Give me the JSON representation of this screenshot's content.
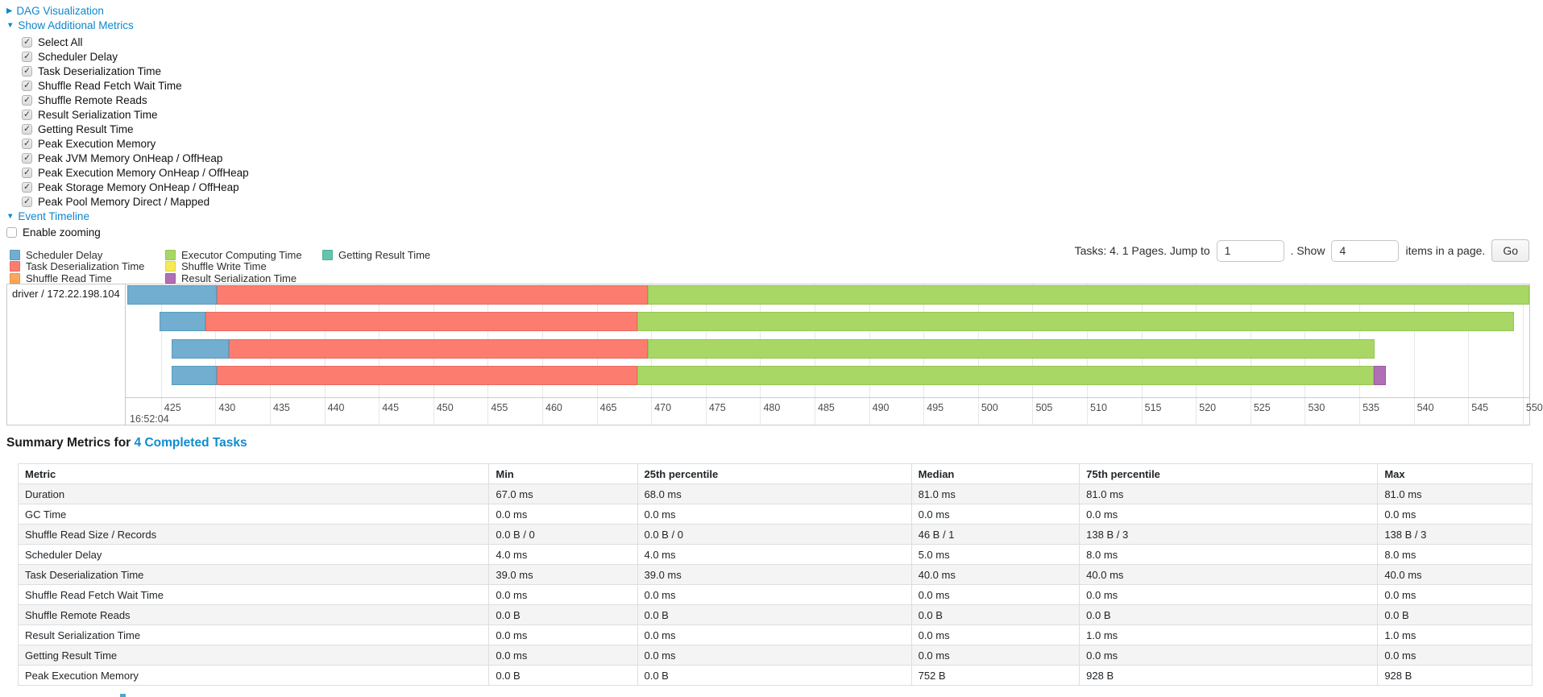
{
  "sections": {
    "dag": "DAG Visualization",
    "metrics": "Show Additional Metrics",
    "timeline": "Event Timeline"
  },
  "metrics_panel": {
    "checkboxes": [
      "Select All",
      "Scheduler Delay",
      "Task Deserialization Time",
      "Shuffle Read Fetch Wait Time",
      "Shuffle Remote Reads",
      "Result Serialization Time",
      "Getting Result Time",
      "Peak Execution Memory",
      "Peak JVM Memory OnHeap / OffHeap",
      "Peak Execution Memory OnHeap / OffHeap",
      "Peak Storage Memory OnHeap / OffHeap",
      "Peak Pool Memory Direct / Mapped"
    ],
    "enable_zooming": "Enable zooming"
  },
  "legend": {
    "types": {
      "scheduler_delay": {
        "label": "Scheduler Delay",
        "color": "#72AECF",
        "border": "#5A9BBF"
      },
      "task_deserialization": {
        "label": "Task Deserialization Time",
        "color": "#FC7D6F",
        "border": "#E96A5F"
      },
      "shuffle_read": {
        "label": "Shuffle Read Time",
        "color": "#FCA758",
        "border": "#E8924A"
      },
      "executor_computing": {
        "label": "Executor Computing Time",
        "color": "#A9D766",
        "border": "#95C551"
      },
      "shuffle_write": {
        "label": "Shuffle Write Time",
        "color": "#F5E956",
        "border": "#DED348"
      },
      "result_serialization": {
        "label": "Result Serialization Time",
        "color": "#B06FB5",
        "border": "#9D5BA3"
      },
      "getting_result": {
        "label": "Getting Result Time",
        "color": "#65C3AE",
        "border": "#52B09A"
      }
    },
    "columns": [
      [
        "scheduler_delay",
        "task_deserialization",
        "shuffle_read"
      ],
      [
        "executor_computing",
        "shuffle_write",
        "result_serialization"
      ],
      [
        "getting_result"
      ]
    ]
  },
  "pagination": {
    "tasks_text": "Tasks: 4. 1 Pages. Jump to",
    "jump_value": "1",
    "show_text": ". Show",
    "show_value": "4",
    "items_text": "items in a page.",
    "go_label": "Go"
  },
  "timeline": {
    "row_label": "driver / 172.22.198.104",
    "axis": {
      "min": 421.76,
      "max": 550.6,
      "ticks": [
        425,
        430,
        435,
        440,
        445,
        450,
        455,
        460,
        465,
        470,
        475,
        480,
        485,
        490,
        495,
        500,
        505,
        510,
        515,
        520,
        525,
        530,
        535,
        540,
        545,
        550
      ],
      "time_label": "16:52:04"
    },
    "bar_tops": [
      1,
      34,
      68,
      101
    ],
    "bars": [
      {
        "segments": [
          {
            "type": "scheduler_delay",
            "start": 421.9,
            "end": 430.1
          },
          {
            "type": "task_deserialization",
            "start": 430.1,
            "end": 469.7
          },
          {
            "type": "executor_computing",
            "start": 469.7,
            "end": 550.6
          }
        ]
      },
      {
        "segments": [
          {
            "type": "scheduler_delay",
            "start": 424.9,
            "end": 429.1
          },
          {
            "type": "task_deserialization",
            "start": 429.1,
            "end": 468.7
          },
          {
            "type": "executor_computing",
            "start": 468.7,
            "end": 549.2
          }
        ]
      },
      {
        "segments": [
          {
            "type": "scheduler_delay",
            "start": 426.0,
            "end": 431.2
          },
          {
            "type": "task_deserialization",
            "start": 431.2,
            "end": 469.7
          },
          {
            "type": "executor_computing",
            "start": 469.7,
            "end": 536.4
          }
        ]
      },
      {
        "segments": [
          {
            "type": "scheduler_delay",
            "start": 426.0,
            "end": 430.1
          },
          {
            "type": "task_deserialization",
            "start": 430.1,
            "end": 468.7
          },
          {
            "type": "executor_computing",
            "start": 468.7,
            "end": 536.3
          },
          {
            "type": "result_serialization",
            "start": 536.3,
            "end": 537.4
          }
        ]
      }
    ]
  },
  "summary": {
    "title": "Summary Metrics for",
    "link": "4 Completed Tasks",
    "table": {
      "headers": [
        "Metric",
        "Min",
        "25th percentile",
        "Median",
        "75th percentile",
        "Max"
      ],
      "col_widths": [
        "31.1%",
        "9.8%",
        "18.1%",
        "11.1%",
        "19.7%",
        "10.2%"
      ],
      "rows": [
        [
          "Duration",
          "67.0 ms",
          "68.0 ms",
          "81.0 ms",
          "81.0 ms",
          "81.0 ms"
        ],
        [
          "GC Time",
          "0.0 ms",
          "0.0 ms",
          "0.0 ms",
          "0.0 ms",
          "0.0 ms"
        ],
        [
          "Shuffle Read Size / Records",
          "0.0 B / 0",
          "0.0 B / 0",
          "46 B / 1",
          "138 B / 3",
          "138 B / 3"
        ],
        [
          "Scheduler Delay",
          "4.0 ms",
          "4.0 ms",
          "5.0 ms",
          "8.0 ms",
          "8.0 ms"
        ],
        [
          "Task Deserialization Time",
          "39.0 ms",
          "39.0 ms",
          "40.0 ms",
          "40.0 ms",
          "40.0 ms"
        ],
        [
          "Shuffle Read Fetch Wait Time",
          "0.0 ms",
          "0.0 ms",
          "0.0 ms",
          "0.0 ms",
          "0.0 ms"
        ],
        [
          "Shuffle Remote Reads",
          "0.0 B",
          "0.0 B",
          "0.0 B",
          "0.0 B",
          "0.0 B"
        ],
        [
          "Result Serialization Time",
          "0.0 ms",
          "0.0 ms",
          "0.0 ms",
          "1.0 ms",
          "1.0 ms"
        ],
        [
          "Getting Result Time",
          "0.0 ms",
          "0.0 ms",
          "0.0 ms",
          "0.0 ms",
          "0.0 ms"
        ],
        [
          "Peak Execution Memory",
          "0.0 B",
          "0.0 B",
          "752 B",
          "928 B",
          "928 B"
        ]
      ]
    }
  }
}
